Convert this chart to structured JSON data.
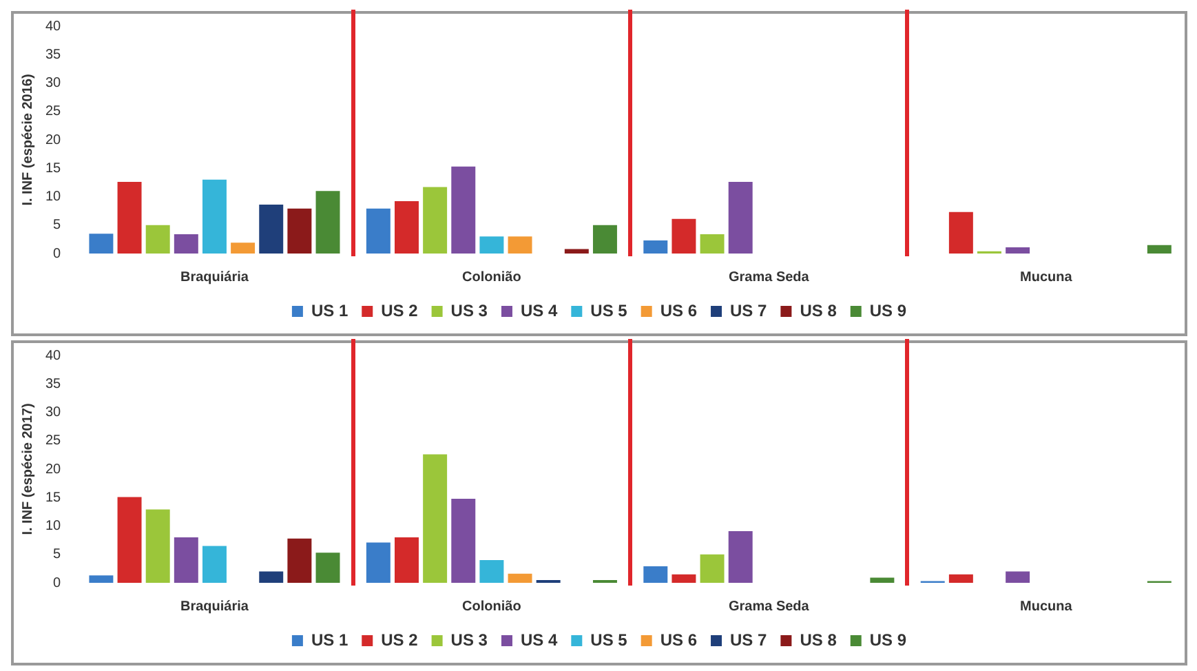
{
  "chart_data": [
    {
      "type": "bar",
      "ylabel": "I. INF (espécie 2016)",
      "categories": [
        "Braquiária",
        "Colonião",
        "Grama Seda",
        "Mucuna"
      ],
      "ylim": [
        0,
        40
      ],
      "yticks": [
        0,
        5,
        10,
        15,
        20,
        25,
        30,
        35,
        40
      ],
      "grid": false,
      "legend": "bottom",
      "series": [
        {
          "name": "US 1",
          "color": "#3a7dc9",
          "values": [
            3.5,
            7.9,
            2.3,
            0
          ]
        },
        {
          "name": "US 2",
          "color": "#d42a2a",
          "values": [
            12.6,
            9.2,
            6.1,
            7.3
          ]
        },
        {
          "name": "US 3",
          "color": "#9bc63a",
          "values": [
            5,
            11.7,
            3.4,
            0.4
          ]
        },
        {
          "name": "US 4",
          "color": "#7b4ea0",
          "values": [
            3.4,
            15.3,
            12.6,
            1.1
          ]
        },
        {
          "name": "US 5",
          "color": "#35b5d9",
          "values": [
            13,
            3,
            0,
            0
          ]
        },
        {
          "name": "US 6",
          "color": "#f39a35",
          "values": [
            1.9,
            3,
            0,
            0
          ]
        },
        {
          "name": "US 7",
          "color": "#1f3f7a",
          "values": [
            8.6,
            0,
            0,
            0
          ]
        },
        {
          "name": "US 8",
          "color": "#8b1a1a",
          "values": [
            7.9,
            0.8,
            0,
            0
          ]
        },
        {
          "name": "US 9",
          "color": "#4a8a35",
          "values": [
            11,
            5,
            0,
            1.5
          ]
        }
      ]
    },
    {
      "type": "bar",
      "ylabel": "I. INF (espécie 2017)",
      "categories": [
        "Braquiária",
        "Colonião",
        "Grama Seda",
        "Mucuna"
      ],
      "ylim": [
        0,
        40
      ],
      "yticks": [
        0,
        5,
        10,
        15,
        20,
        25,
        30,
        35,
        40
      ],
      "grid": false,
      "legend": "bottom",
      "series": [
        {
          "name": "US 1",
          "color": "#3a7dc9",
          "values": [
            1.3,
            7.1,
            2.9,
            0.3
          ]
        },
        {
          "name": "US 2",
          "color": "#d42a2a",
          "values": [
            15.1,
            8,
            1.5,
            1.5
          ]
        },
        {
          "name": "US 3",
          "color": "#9bc63a",
          "values": [
            12.9,
            22.6,
            5,
            0
          ]
        },
        {
          "name": "US 4",
          "color": "#7b4ea0",
          "values": [
            8,
            14.8,
            9.1,
            2
          ]
        },
        {
          "name": "US 5",
          "color": "#35b5d9",
          "values": [
            6.5,
            4,
            0,
            0
          ]
        },
        {
          "name": "US 6",
          "color": "#f39a35",
          "values": [
            0,
            1.6,
            0,
            0
          ]
        },
        {
          "name": "US 7",
          "color": "#1f3f7a",
          "values": [
            2,
            0.5,
            0,
            0
          ]
        },
        {
          "name": "US 8",
          "color": "#8b1a1a",
          "values": [
            7.8,
            0,
            0,
            0
          ]
        },
        {
          "name": "US 9",
          "color": "#4a8a35",
          "values": [
            5.3,
            0.5,
            0.9,
            0.3
          ]
        }
      ]
    }
  ]
}
